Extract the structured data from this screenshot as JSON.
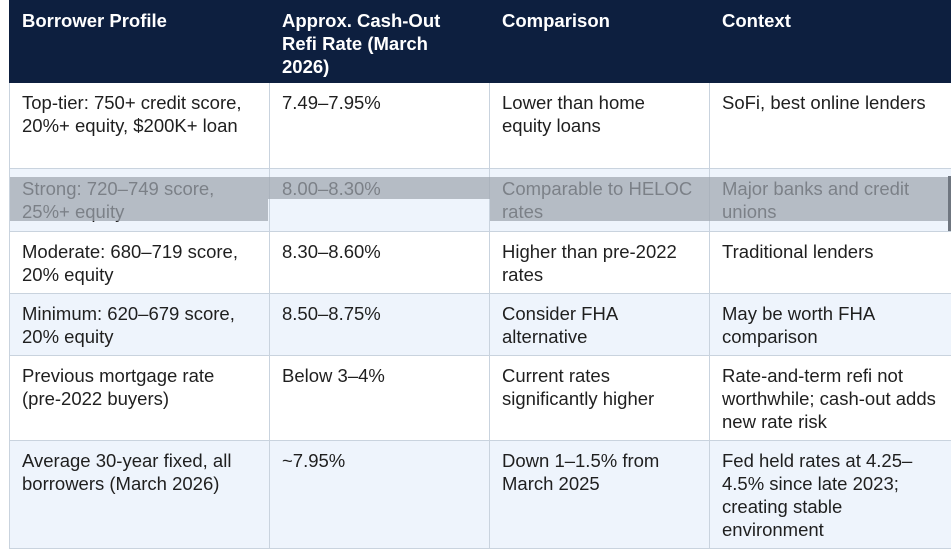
{
  "table": {
    "headers": [
      "Borrower Profile",
      "Approx. Cash-Out Refi Rate (March 2026)",
      "Comparison",
      "Context"
    ],
    "rows": [
      [
        "Top-tier: 750+ credit score, 20%+ equity, $200K+ loan",
        "7.49–7.95%",
        "Lower than home equity loans",
        "SoFi, best online lenders"
      ],
      [
        "Strong: 720–749 score, 25%+ equity",
        "8.00–8.30%",
        "Comparable to HELOC rates",
        "Major banks and credit unions"
      ],
      [
        "Moderate: 680–719 score, 20% equity",
        "8.30–8.60%",
        "Higher than pre-2022 rates",
        "Traditional lenders"
      ],
      [
        "Minimum: 620–679 score, 20% equity",
        "8.50–8.75%",
        "Consider FHA alternative",
        "May be worth FHA comparison"
      ],
      [
        "Previous mortgage rate (pre-2022 buyers)",
        "Below 3–4%",
        "Current rates significantly higher",
        "Rate-and-term refi not worthwhile; cash-out adds new rate risk"
      ],
      [
        "Average 30-year fixed, all borrowers (March 2026)",
        "~7.95%",
        "Down 1–1.5% from March 2025",
        "Fed held rates at 4.25–4.5% since late 2023; creating stable environment"
      ]
    ]
  }
}
